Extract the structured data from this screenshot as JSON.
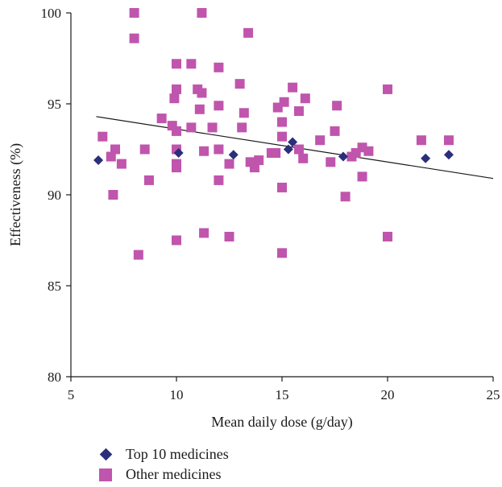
{
  "chart_data": {
    "type": "scatter",
    "xlabel": "Mean daily dose (g/day)",
    "ylabel": "Effectiveness (%)",
    "xlim": [
      5,
      25
    ],
    "ylim": [
      80,
      100
    ],
    "xticks": [
      "5",
      "10",
      "15",
      "20",
      "25"
    ],
    "yticks": [
      "80",
      "85",
      "90",
      "95",
      "100"
    ],
    "grid": false,
    "legend_position": "bottom-left",
    "trendline": {
      "x": [
        6.2,
        25
      ],
      "y": [
        94.3,
        90.9
      ],
      "color": "#1a1a1a"
    },
    "series": [
      {
        "name": "Top 10 medicines",
        "marker": "diamond",
        "color": "#2b2e7a",
        "x": [
          6.3,
          10.1,
          12.7,
          15.3,
          15.5,
          17.9,
          21.8,
          22.9
        ],
        "y": [
          91.9,
          92.3,
          92.2,
          92.5,
          92.9,
          92.1,
          92.0,
          92.2
        ]
      },
      {
        "name": "Other medicines",
        "marker": "square",
        "color": "#c055ad",
        "x": [
          8.0,
          11.2,
          8.0,
          13.4,
          10.0,
          10.7,
          12.0,
          11.0,
          9.9,
          10.0,
          11.2,
          13.0,
          11.1,
          12.0,
          13.2,
          15.1,
          14.8,
          15.5,
          15.8,
          16.1,
          17.6,
          20.0,
          9.3,
          9.8,
          10.0,
          10.7,
          11.7,
          13.1,
          15.0,
          17.5,
          6.5,
          6.9,
          7.1,
          7.4,
          8.5,
          10.0,
          10.0,
          10.0,
          11.3,
          12.0,
          12.5,
          13.5,
          13.7,
          13.9,
          14.5,
          14.7,
          15.0,
          15.8,
          16.0,
          16.8,
          17.3,
          18.3,
          18.5,
          18.8,
          19.1,
          21.6,
          22.9,
          7.0,
          8.7,
          12.0,
          15.0,
          18.0,
          18.8,
          10.0,
          11.3,
          12.5,
          8.2,
          15.0,
          20.0
        ],
        "y": [
          100.0,
          100.0,
          98.6,
          98.9,
          97.2,
          97.2,
          97.0,
          95.8,
          95.3,
          95.8,
          95.6,
          96.1,
          94.7,
          94.9,
          94.5,
          95.1,
          94.8,
          95.9,
          94.6,
          95.3,
          94.9,
          95.8,
          94.2,
          93.8,
          93.5,
          93.7,
          93.7,
          93.7,
          94.0,
          93.5,
          93.2,
          92.1,
          92.5,
          91.7,
          92.5,
          92.5,
          91.7,
          91.5,
          92.4,
          92.5,
          91.7,
          91.8,
          91.5,
          91.9,
          92.3,
          92.3,
          93.2,
          92.5,
          92.0,
          93.0,
          91.8,
          92.1,
          92.3,
          92.6,
          92.4,
          93.0,
          93.0,
          90.0,
          90.8,
          90.8,
          90.4,
          89.9,
          91.0,
          87.5,
          87.9,
          87.7,
          86.7,
          86.8,
          87.7
        ]
      }
    ]
  }
}
